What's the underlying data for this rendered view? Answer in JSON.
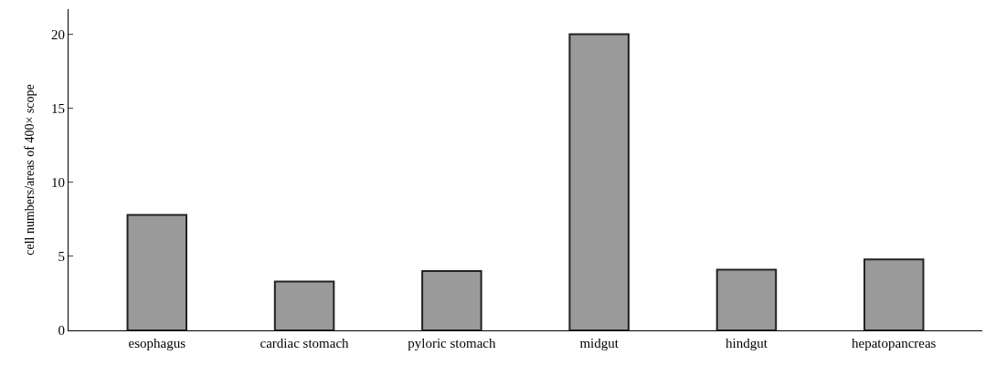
{
  "chart_data": {
    "type": "bar",
    "ylabel": "cell numbers/areas of 400× scope",
    "categories": [
      "esophagus",
      "cardiac stomach",
      "pyloric stomach",
      "midgut",
      "hindgut",
      "hepatopancreas"
    ],
    "values": [
      7.8,
      3.3,
      4.0,
      20,
      4.1,
      4.8
    ],
    "color": "#9a9a9a",
    "ylim": [
      0,
      21.7
    ],
    "yticks": [
      0,
      5,
      10,
      15,
      20
    ]
  }
}
